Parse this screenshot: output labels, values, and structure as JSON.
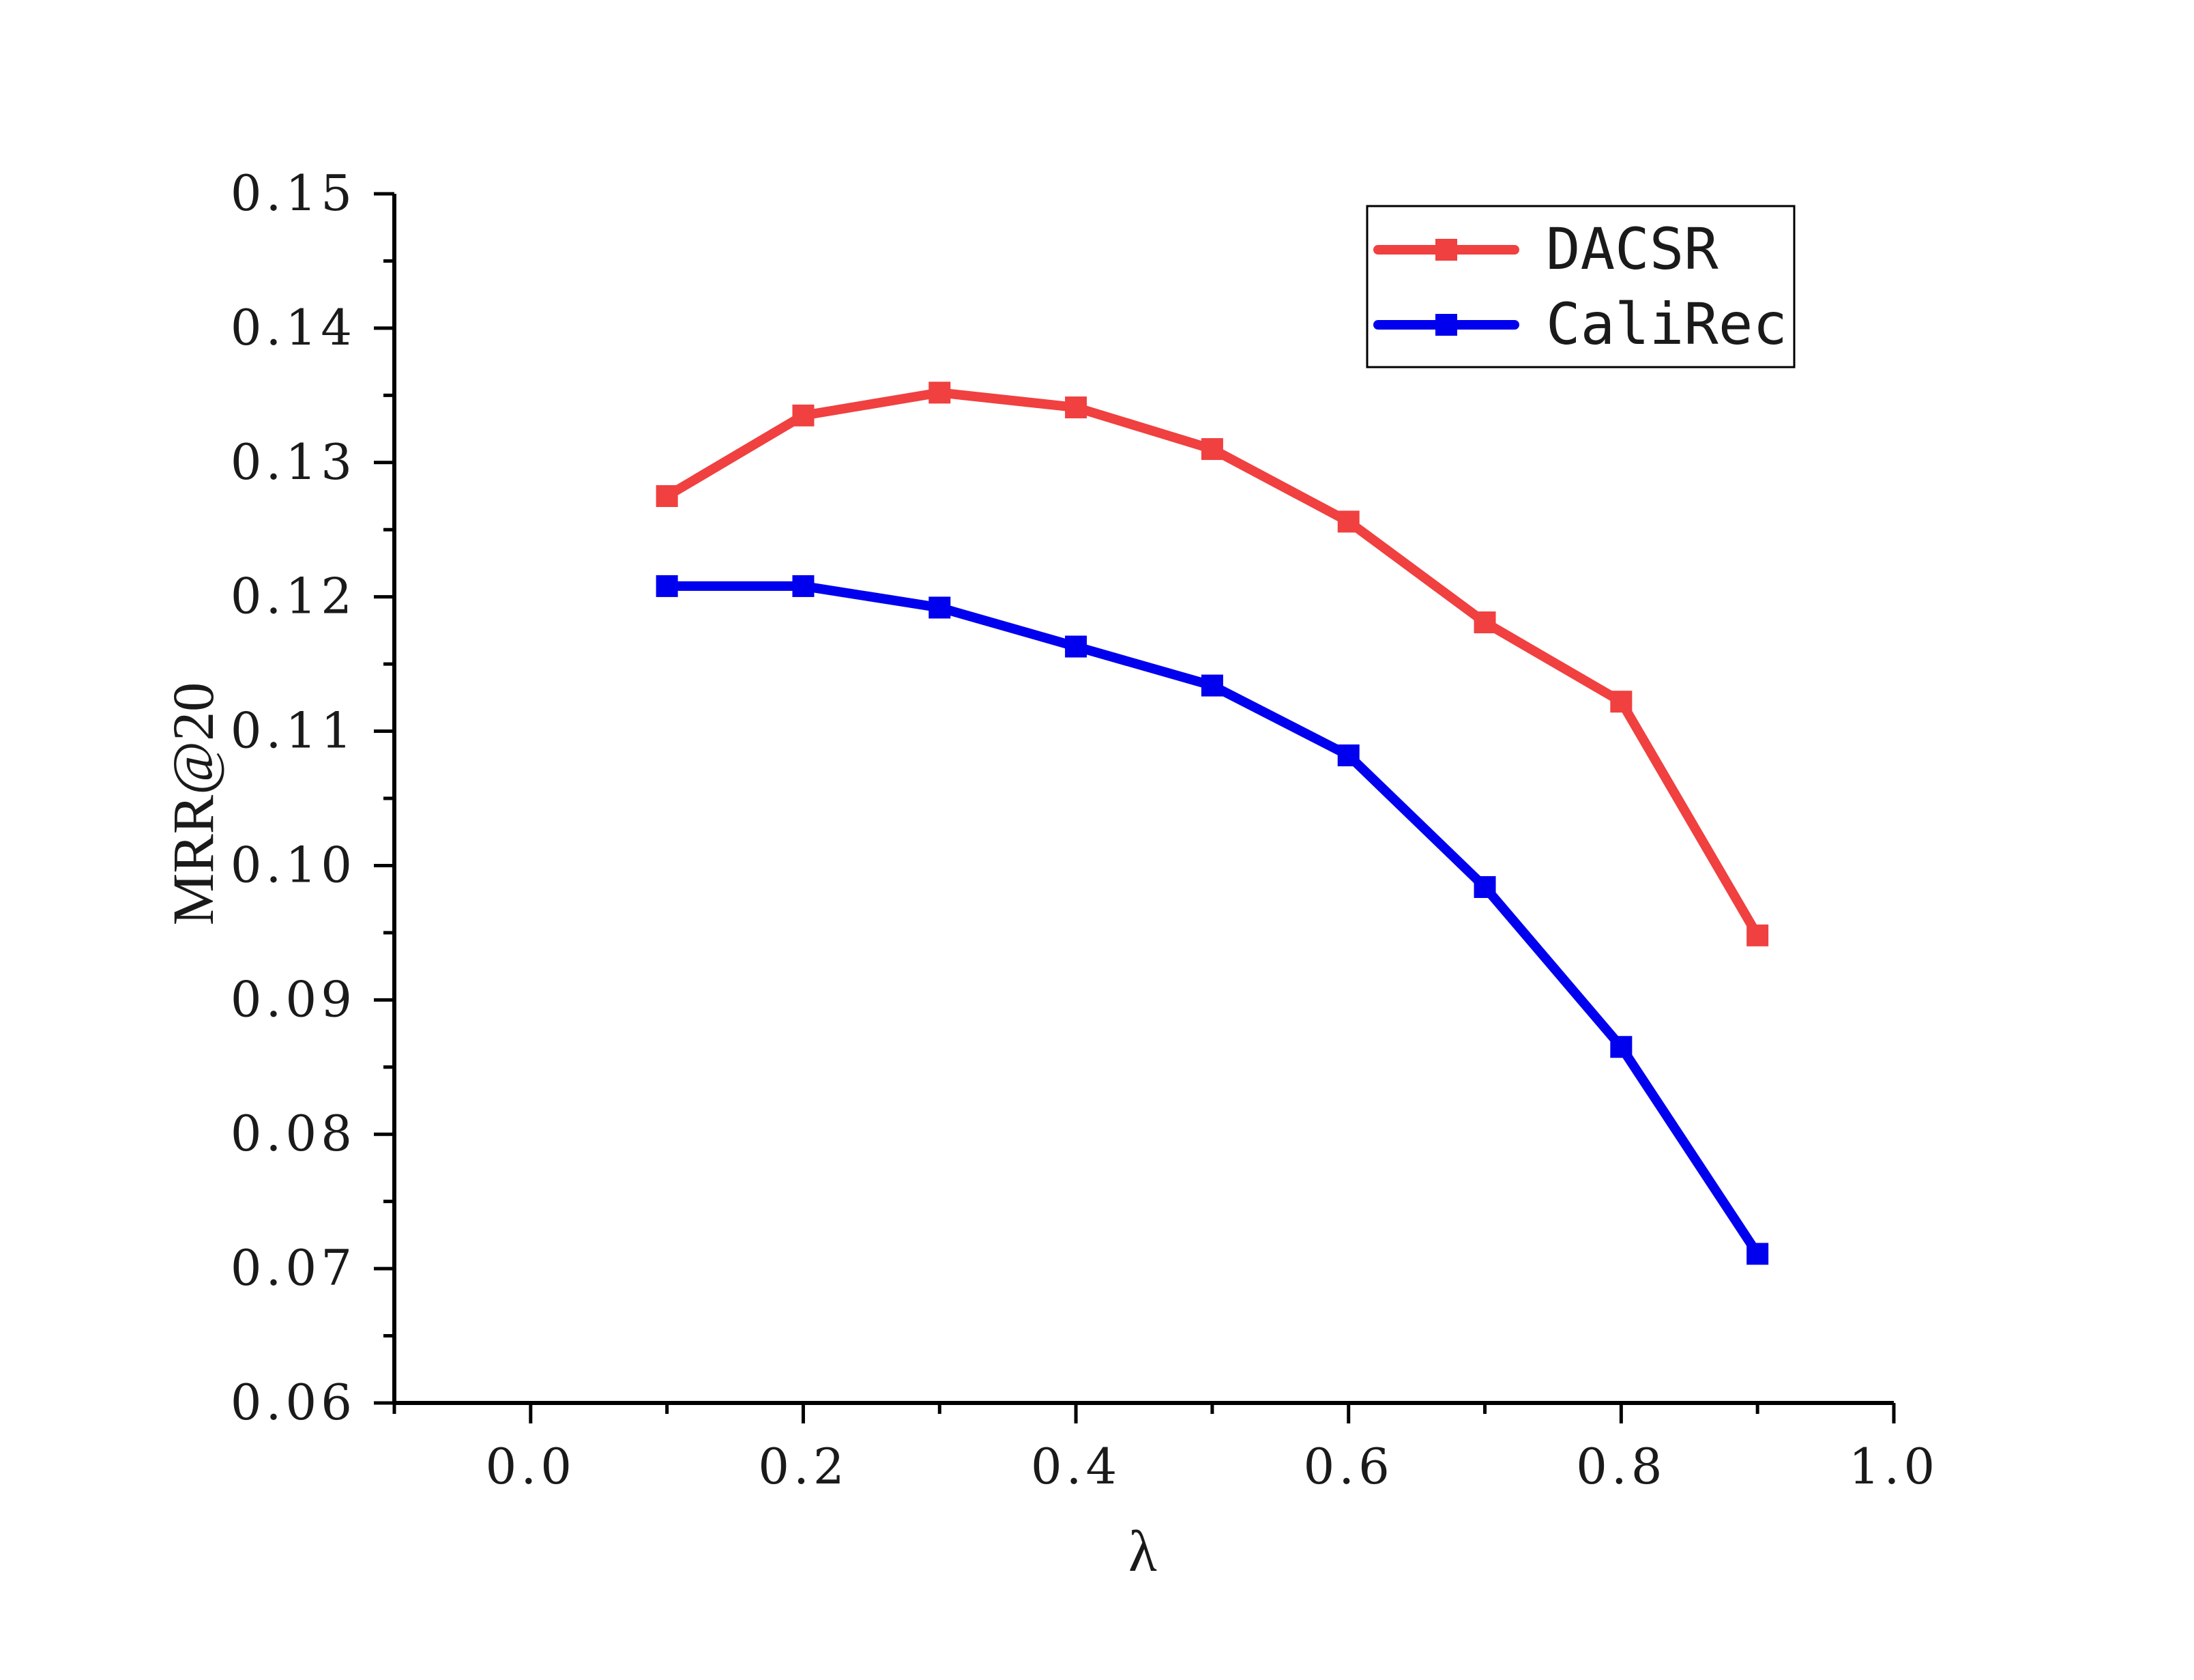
{
  "chart_data": {
    "type": "line",
    "xlabel": "λ",
    "ylabel": "MRR@20",
    "xlim": [
      -0.1,
      1.0
    ],
    "ylim": [
      0.06,
      0.15
    ],
    "x_ticks": [
      0.0,
      0.2,
      0.4,
      0.6,
      0.8,
      1.0
    ],
    "x_tick_labels": [
      "0.0",
      "0.2",
      "0.4",
      "0.6",
      "0.8",
      "1.0"
    ],
    "y_ticks": [
      0.06,
      0.07,
      0.08,
      0.09,
      0.1,
      0.11,
      0.12,
      0.13,
      0.14,
      0.15
    ],
    "y_tick_labels": [
      "0.06",
      "0.07",
      "0.08",
      "0.09",
      "0.10",
      "0.11",
      "0.12",
      "0.13",
      "0.14",
      "0.15"
    ],
    "grid": false,
    "legend_position": "top-right",
    "x": [
      0.1,
      0.2,
      0.3,
      0.4,
      0.5,
      0.6,
      0.7,
      0.8,
      0.9
    ],
    "series": [
      {
        "name": "DACSR",
        "color": "#f04040",
        "marker": "square",
        "values": [
          0.1275,
          0.1335,
          0.1352,
          0.1341,
          0.131,
          0.1256,
          0.1181,
          0.1122,
          0.0948
        ]
      },
      {
        "name": "CaliRec",
        "color": "#0000ee",
        "marker": "square",
        "values": [
          0.1208,
          0.1208,
          0.1192,
          0.1163,
          0.1134,
          0.1082,
          0.0984,
          0.0865,
          0.0711
        ]
      }
    ]
  }
}
